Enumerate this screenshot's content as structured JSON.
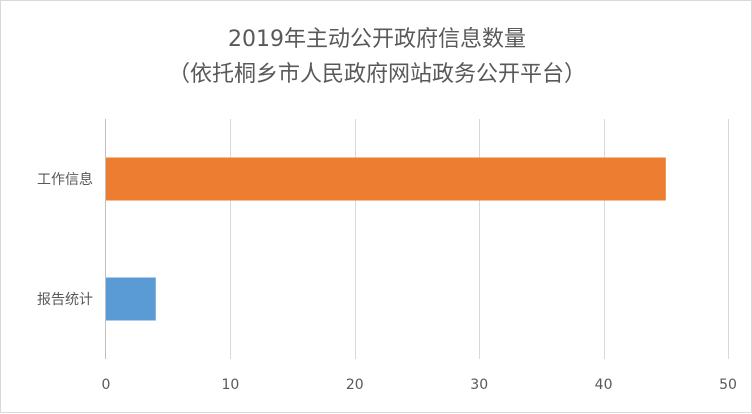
{
  "chart_data": {
    "type": "bar",
    "orientation": "horizontal",
    "title": "2019年主动公开政府信息数量",
    "subtitle": "（依托桐乡市人民政府网站政务公开平台）",
    "categories": [
      "工作信息",
      "报告统计"
    ],
    "values": [
      45,
      4
    ],
    "colors": [
      "#ED7D31",
      "#5B9BD5"
    ],
    "xlim": [
      0,
      50
    ],
    "xticks": [
      0,
      10,
      20,
      30,
      40,
      50
    ],
    "xlabel": "",
    "ylabel": "",
    "grid": true,
    "legend": "none"
  }
}
